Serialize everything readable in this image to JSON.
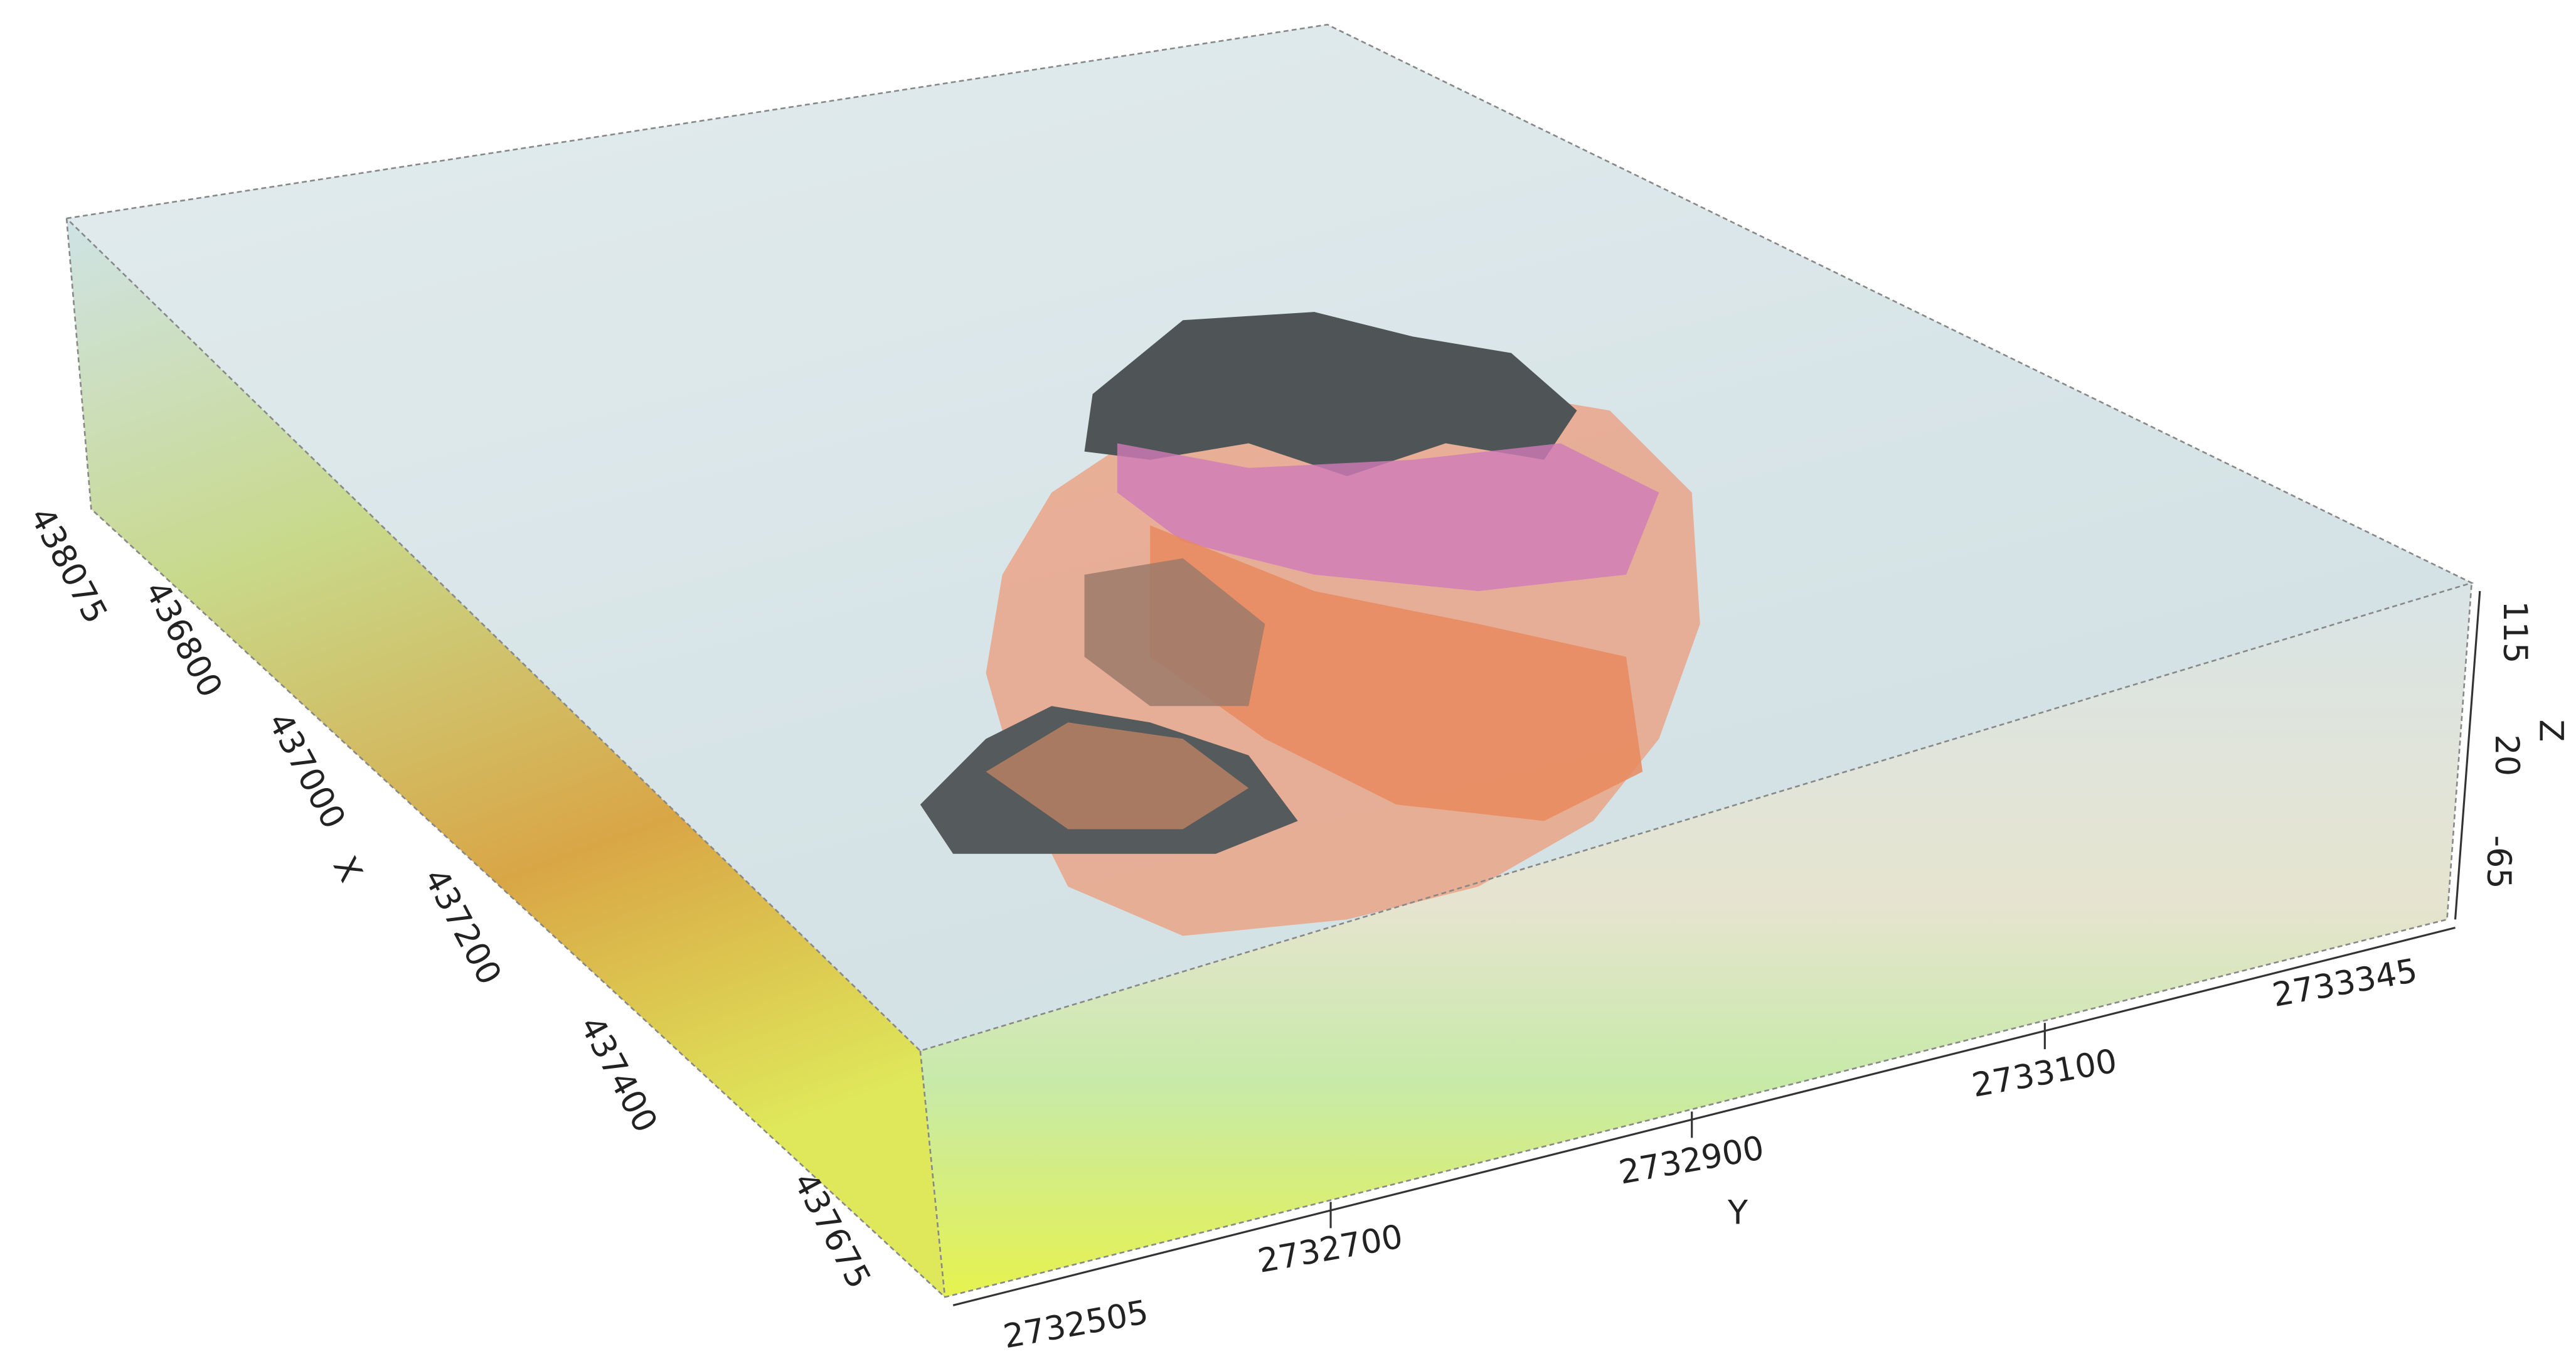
{
  "axes": {
    "x": {
      "label": "X",
      "ticks": [
        "438075",
        "436800",
        "437000",
        "437200",
        "437400",
        "437675"
      ]
    },
    "y": {
      "label": "Y",
      "ticks": [
        "2732505",
        "2732700",
        "2732900",
        "2733100",
        "2733345"
      ]
    },
    "z": {
      "label": "Z",
      "ticks": [
        "115",
        "20",
        "-65"
      ]
    }
  }
}
